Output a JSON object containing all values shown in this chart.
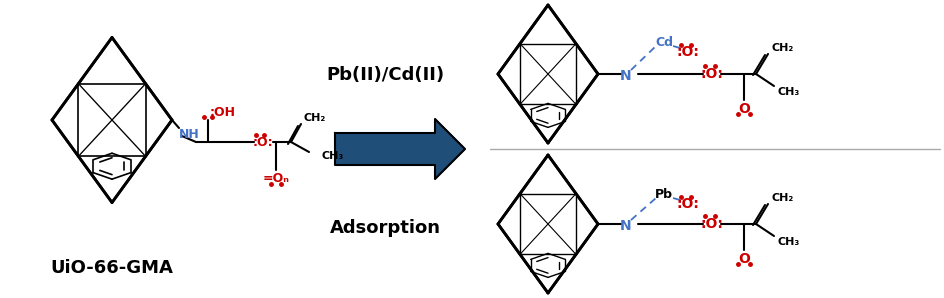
{
  "background_color": "#ffffff",
  "label_uio": "UiO-66-GMA",
  "label_pb_cd": "Pb(II)/Cd(II)",
  "label_adsorption": "Adsorption",
  "black": "#000000",
  "red": "#cc0000",
  "blue": "#4472c4",
  "dark_blue": "#1f4e79",
  "divider_color": "#aaaaaa",
  "figsize": [
    9.45,
    2.98
  ],
  "dpi": 100
}
